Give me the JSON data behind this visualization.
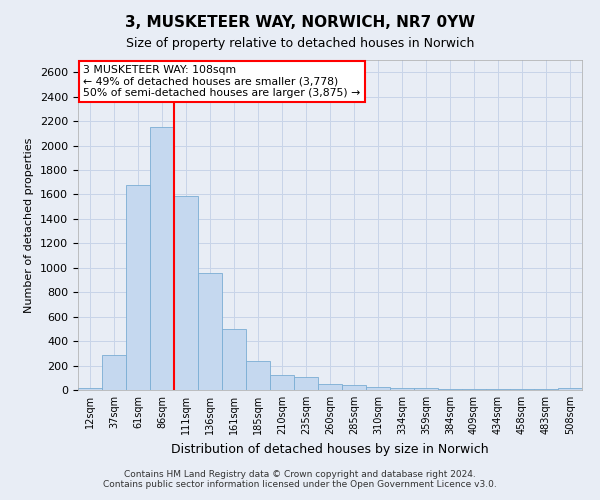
{
  "title": "3, MUSKETEER WAY, NORWICH, NR7 0YW",
  "subtitle": "Size of property relative to detached houses in Norwich",
  "xlabel": "Distribution of detached houses by size in Norwich",
  "ylabel": "Number of detached properties",
  "footer_line1": "Contains HM Land Registry data © Crown copyright and database right 2024.",
  "footer_line2": "Contains public sector information licensed under the Open Government Licence v3.0.",
  "annotation_line1": "3 MUSKETEER WAY: 108sqm",
  "annotation_line2": "← 49% of detached houses are smaller (3,778)",
  "annotation_line3": "50% of semi-detached houses are larger (3,875) →",
  "bar_color": "#c5d8ef",
  "bar_edge_color": "#7aadd4",
  "vline_color": "red",
  "vline_x_bin": 4,
  "categories": [
    "12sqm",
    "37sqm",
    "61sqm",
    "86sqm",
    "111sqm",
    "136sqm",
    "161sqm",
    "185sqm",
    "210sqm",
    "235sqm",
    "260sqm",
    "285sqm",
    "310sqm",
    "334sqm",
    "359sqm",
    "384sqm",
    "409sqm",
    "434sqm",
    "458sqm",
    "483sqm",
    "508sqm"
  ],
  "values": [
    15,
    290,
    1680,
    2150,
    1590,
    960,
    500,
    240,
    120,
    105,
    50,
    38,
    25,
    20,
    18,
    10,
    10,
    7,
    10,
    5,
    18
  ],
  "ylim": [
    0,
    2700
  ],
  "yticks": [
    0,
    200,
    400,
    600,
    800,
    1000,
    1200,
    1400,
    1600,
    1800,
    2000,
    2200,
    2400,
    2600
  ],
  "grid_color": "#c8d4e8",
  "background_color": "#e8edf5",
  "annotation_box_edge_color": "red",
  "annotation_box_face_color": "white",
  "title_fontsize": 11,
  "subtitle_fontsize": 9,
  "ylabel_fontsize": 8,
  "xlabel_fontsize": 9
}
